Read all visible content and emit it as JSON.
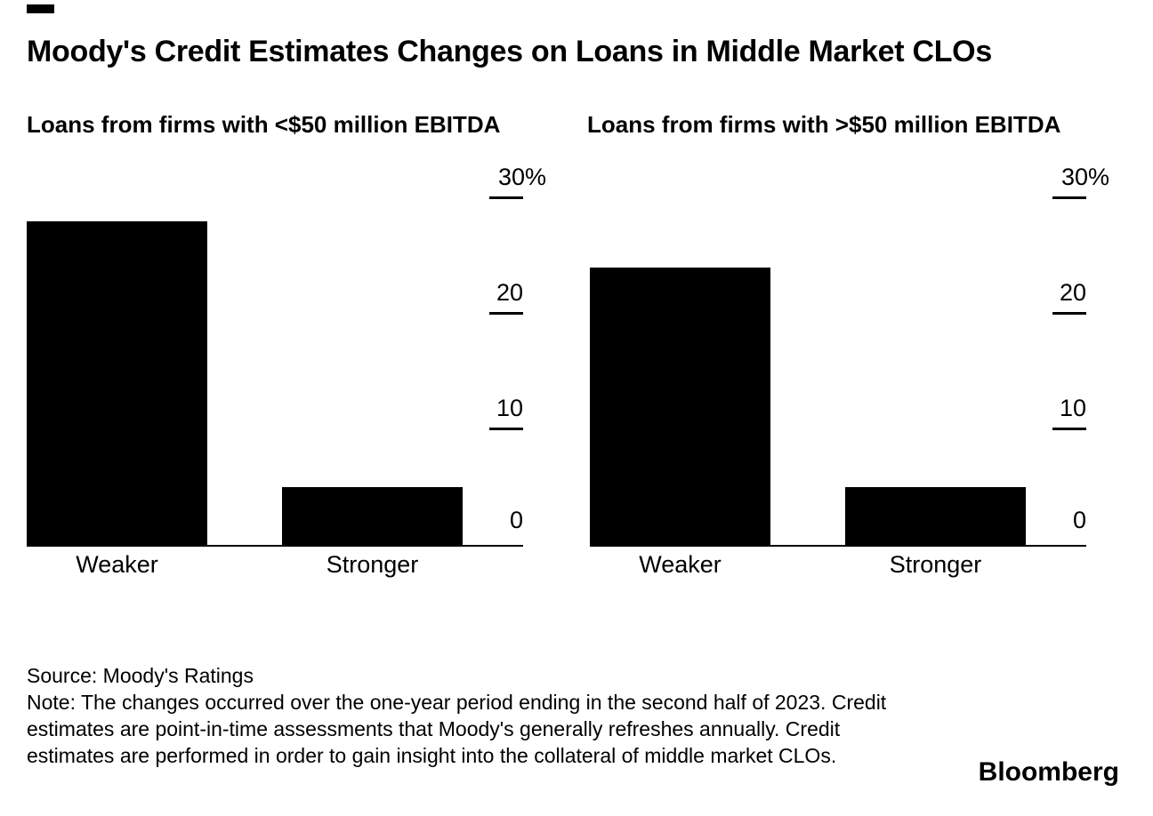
{
  "colors": {
    "foreground": "#000000",
    "background": "#ffffff",
    "bar": "#000000"
  },
  "header": {
    "title": "Moody's Credit Estimates Changes on Loans in Middle Market CLOs"
  },
  "chart_data": [
    {
      "type": "bar",
      "title": "Loans from firms with <$50 million EBITDA",
      "categories": [
        "Weaker",
        "Stronger"
      ],
      "values": [
        28,
        5
      ],
      "unit": "%",
      "ylim": [
        0,
        30
      ],
      "yticks": [
        {
          "value": 30,
          "label": "30%"
        },
        {
          "value": 20,
          "label": "20"
        },
        {
          "value": 10,
          "label": "10"
        },
        {
          "value": 0,
          "label": "0"
        }
      ],
      "xlabel": "",
      "ylabel": "",
      "grid": false,
      "legend": "none",
      "axis_side": "right",
      "bar_color": "#000000"
    },
    {
      "type": "bar",
      "title": "Loans from firms with >$50 million EBITDA",
      "categories": [
        "Weaker",
        "Stronger"
      ],
      "values": [
        24,
        5
      ],
      "unit": "%",
      "ylim": [
        0,
        30
      ],
      "yticks": [
        {
          "value": 30,
          "label": "30%"
        },
        {
          "value": 20,
          "label": "20"
        },
        {
          "value": 10,
          "label": "10"
        },
        {
          "value": 0,
          "label": "0"
        }
      ],
      "xlabel": "",
      "ylabel": "",
      "grid": false,
      "legend": "none",
      "axis_side": "right",
      "bar_color": "#000000"
    }
  ],
  "footer": {
    "source": "Source: Moody's Ratings",
    "note": "Note: The changes occurred over the one-year period ending in the second half of 2023. Credit estimates are point-in-time assessments that Moody's generally refreshes annually. Credit estimates are performed in order to gain insight into the collateral of middle market CLOs.",
    "brand": "Bloomberg"
  }
}
